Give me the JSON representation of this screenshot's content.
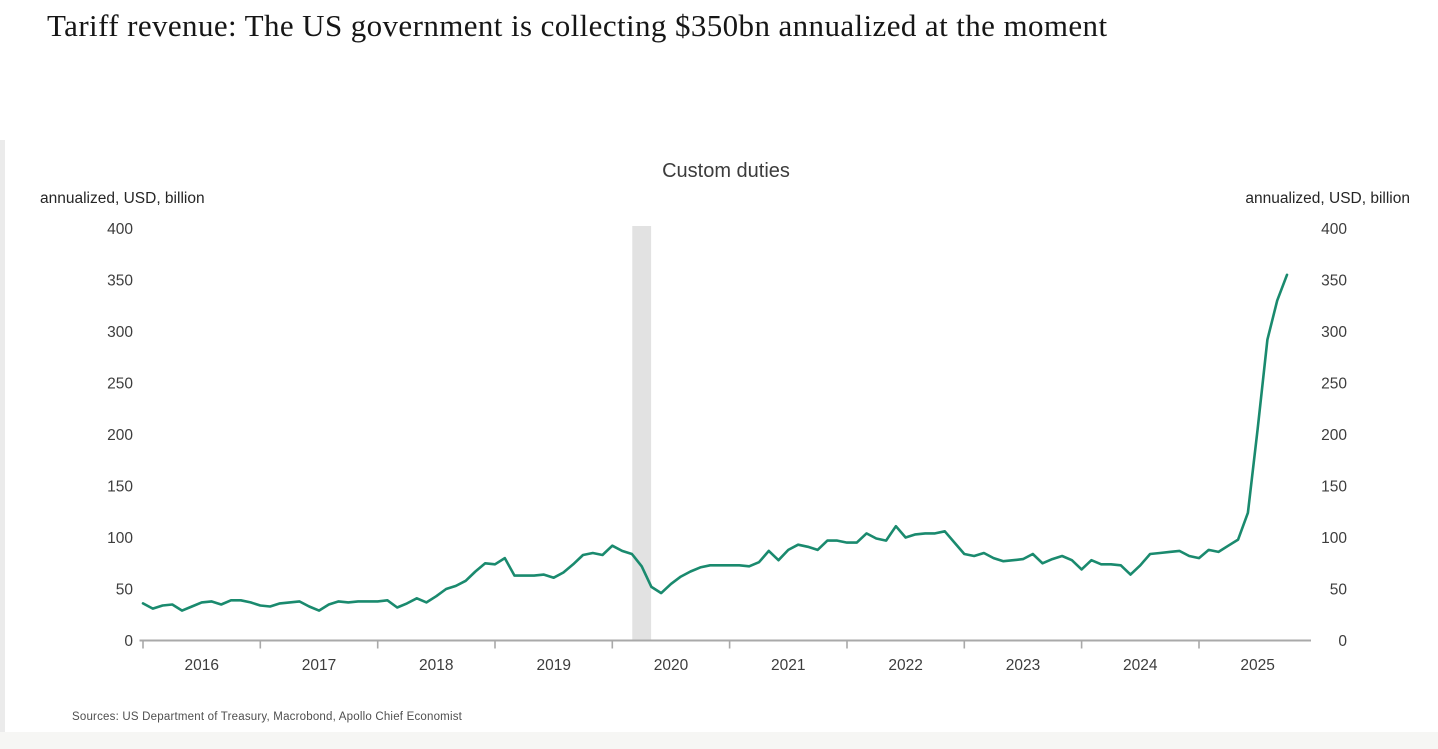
{
  "header": {
    "title": "Tariff revenue: The US government is collecting $350bn annualized at the moment"
  },
  "footer": {
    "sources": "Sources: US Department of Treasury, Macrobond, Apollo Chief Economist"
  },
  "chart_data": {
    "type": "line",
    "title": "Custom duties",
    "ylabel_left": "annualized, USD, billion",
    "ylabel_right": "annualized, USD, billion",
    "ylim": [
      0,
      400
    ],
    "y_ticks": [
      0,
      50,
      100,
      150,
      200,
      250,
      300,
      350,
      400
    ],
    "x_year_labels": [
      "2016",
      "2017",
      "2018",
      "2019",
      "2020",
      "2021",
      "2022",
      "2023",
      "2024",
      "2025"
    ],
    "grid": false,
    "legend": false,
    "line_color": "#1a8a6e",
    "recession_band": {
      "color": "#e2e2e2",
      "from_year": 2020.17,
      "to_year": 2020.33
    },
    "series": [
      {
        "name": "US custom duties, monthly, annualized, USD billion",
        "start_month": "2015-12",
        "end_month": "2025-09",
        "values": [
          36,
          31,
          34,
          35,
          29,
          33,
          37,
          38,
          35,
          39,
          39,
          37,
          34,
          33,
          36,
          37,
          38,
          33,
          29,
          35,
          38,
          37,
          38,
          38,
          38,
          39,
          32,
          36,
          41,
          37,
          43,
          50,
          53,
          58,
          67,
          75,
          74,
          80,
          63,
          63,
          63,
          64,
          61,
          66,
          74,
          83,
          85,
          83,
          92,
          87,
          84,
          72,
          52,
          46,
          55,
          62,
          67,
          71,
          73,
          73,
          73,
          73,
          72,
          76,
          87,
          78,
          88,
          93,
          91,
          88,
          97,
          97,
          95,
          95,
          104,
          99,
          97,
          111,
          100,
          103,
          104,
          104,
          106,
          95,
          84,
          82,
          85,
          80,
          77,
          78,
          79,
          84,
          75,
          79,
          82,
          78,
          69,
          78,
          74,
          74,
          73,
          64,
          73,
          84,
          85,
          86,
          87,
          82,
          80,
          88,
          86,
          92,
          98,
          124,
          205,
          292,
          330,
          355
        ]
      }
    ],
    "last_value": 355
  }
}
